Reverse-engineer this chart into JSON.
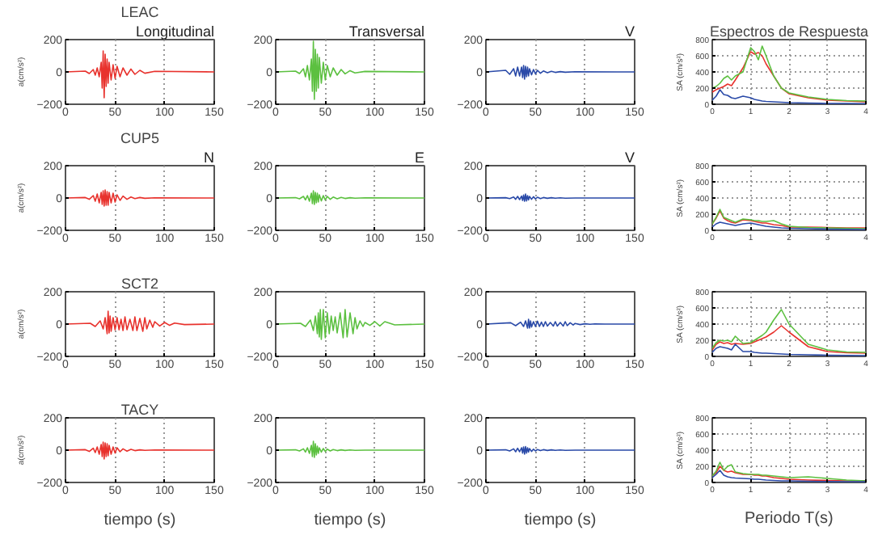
{
  "chart_data": [
    {
      "type": "line",
      "title": "LEAC",
      "annotations": [
        "Longitudinal"
      ],
      "ylabel": "a(cm/s²)",
      "xlim": [
        0,
        150
      ],
      "xticks": [
        0,
        50,
        100,
        150
      ],
      "ylim": [
        -200,
        200
      ],
      "yticks": [
        -200,
        0,
        200
      ],
      "grid": "x",
      "x": [
        0,
        20,
        24,
        28,
        30,
        32,
        34,
        36,
        37,
        38,
        39,
        40,
        41,
        42,
        43,
        44,
        46,
        48,
        50,
        52,
        55,
        58,
        62,
        66,
        70,
        75,
        80,
        90,
        150
      ],
      "series": [
        {
          "color": "#e8322d",
          "values": [
            0,
            5,
            -10,
            15,
            -20,
            25,
            -30,
            60,
            -100,
            130,
            -160,
            110,
            -90,
            80,
            -70,
            60,
            -50,
            45,
            -40,
            35,
            -30,
            25,
            -20,
            18,
            -15,
            10,
            -8,
            4,
            0
          ]
        }
      ]
    },
    {
      "type": "line",
      "annotations": [
        "Transversal"
      ],
      "xlim": [
        0,
        150
      ],
      "xticks": [
        0,
        50,
        100,
        150
      ],
      "ylim": [
        -200,
        200
      ],
      "yticks": [
        -200,
        0,
        200
      ],
      "grid": "x",
      "x": [
        0,
        20,
        24,
        28,
        30,
        32,
        34,
        36,
        37,
        38,
        39,
        40,
        41,
        42,
        43,
        44,
        46,
        48,
        50,
        52,
        55,
        58,
        62,
        66,
        70,
        75,
        80,
        90,
        150
      ],
      "series": [
        {
          "color": "#5cc040",
          "values": [
            0,
            5,
            -10,
            20,
            -30,
            40,
            -50,
            80,
            -120,
            190,
            -170,
            140,
            -120,
            110,
            -100,
            90,
            -70,
            60,
            -50,
            40,
            -30,
            25,
            -20,
            15,
            -12,
            8,
            -6,
            3,
            0
          ]
        }
      ]
    },
    {
      "type": "line",
      "annotations": [
        "V"
      ],
      "xlim": [
        0,
        150
      ],
      "xticks": [
        0,
        50,
        100,
        150
      ],
      "ylim": [
        -200,
        200
      ],
      "yticks": [
        -200,
        0,
        200
      ],
      "grid": "x",
      "x": [
        0,
        20,
        24,
        28,
        30,
        32,
        34,
        36,
        37,
        38,
        39,
        40,
        41,
        42,
        43,
        44,
        46,
        48,
        50,
        52,
        55,
        58,
        62,
        66,
        70,
        75,
        80,
        90,
        150
      ],
      "series": [
        {
          "color": "#2a4aa8",
          "values": [
            0,
            10,
            -15,
            20,
            -25,
            30,
            -25,
            30,
            -35,
            40,
            -45,
            35,
            -30,
            30,
            -25,
            20,
            -18,
            15,
            -12,
            10,
            -8,
            6,
            -5,
            4,
            -3,
            2,
            -2,
            1,
            0
          ]
        }
      ]
    },
    {
      "type": "line",
      "title": "Espectros de Respuesta",
      "ylabel": "SA (cm/s²)",
      "xlim": [
        0,
        4
      ],
      "xticks": [
        0,
        1,
        2,
        3,
        4
      ],
      "ylim": [
        0,
        800
      ],
      "yticks": [
        0,
        200,
        400,
        600,
        800
      ],
      "grid": true,
      "series": [
        {
          "color": "#e8322d",
          "x": [
            0,
            0.1,
            0.2,
            0.3,
            0.4,
            0.5,
            0.6,
            0.8,
            1.0,
            1.1,
            1.2,
            1.3,
            1.4,
            1.6,
            1.8,
            2.0,
            2.5,
            3.0,
            3.5,
            4.0
          ],
          "values": [
            150,
            180,
            200,
            220,
            250,
            230,
            300,
            450,
            650,
            620,
            640,
            600,
            500,
            350,
            200,
            130,
            80,
            50,
            40,
            30
          ]
        },
        {
          "color": "#5cc040",
          "x": [
            0,
            0.1,
            0.2,
            0.3,
            0.4,
            0.5,
            0.6,
            0.8,
            1.0,
            1.1,
            1.2,
            1.3,
            1.4,
            1.6,
            1.8,
            2.0,
            2.5,
            3.0,
            3.5,
            4.0
          ],
          "values": [
            200,
            220,
            260,
            320,
            350,
            300,
            350,
            400,
            700,
            650,
            550,
            720,
            600,
            350,
            200,
            140,
            90,
            60,
            45,
            40
          ]
        },
        {
          "color": "#2a4aa8",
          "x": [
            0,
            0.1,
            0.2,
            0.3,
            0.4,
            0.5,
            0.6,
            0.8,
            1.0,
            1.1,
            1.2,
            1.3,
            1.4,
            1.6,
            1.8,
            2.0,
            2.5,
            3.0,
            3.5,
            4.0
          ],
          "values": [
            50,
            100,
            180,
            120,
            110,
            80,
            70,
            100,
            80,
            60,
            50,
            40,
            35,
            30,
            25,
            20,
            15,
            10,
            10,
            8
          ]
        }
      ]
    },
    {
      "type": "line",
      "title": "CUP5",
      "annotations": [
        "N"
      ],
      "ylabel": "a(cm/s²)",
      "xlim": [
        0,
        150
      ],
      "xticks": [
        0,
        50,
        100,
        150
      ],
      "ylim": [
        -200,
        200
      ],
      "yticks": [
        -200,
        0,
        200
      ],
      "grid": "x",
      "x": [
        0,
        20,
        24,
        28,
        30,
        32,
        34,
        36,
        37,
        38,
        39,
        40,
        41,
        42,
        43,
        44,
        46,
        48,
        50,
        52,
        55,
        58,
        62,
        66,
        70,
        75,
        80,
        90,
        150
      ],
      "series": [
        {
          "color": "#e8322d",
          "values": [
            0,
            3,
            -8,
            15,
            -20,
            25,
            -30,
            35,
            -40,
            45,
            -50,
            50,
            -45,
            40,
            -45,
            35,
            -30,
            30,
            -25,
            20,
            -15,
            12,
            -8,
            6,
            -4,
            3,
            -2,
            1,
            0
          ]
        }
      ]
    },
    {
      "type": "line",
      "annotations": [
        "E"
      ],
      "xlim": [
        0,
        150
      ],
      "xticks": [
        0,
        50,
        100,
        150
      ],
      "ylim": [
        -200,
        200
      ],
      "yticks": [
        -200,
        0,
        200
      ],
      "grid": "x",
      "x": [
        0,
        20,
        24,
        28,
        30,
        32,
        34,
        36,
        37,
        38,
        39,
        40,
        41,
        42,
        43,
        44,
        46,
        48,
        50,
        52,
        55,
        58,
        62,
        66,
        70,
        75,
        80,
        90,
        150
      ],
      "series": [
        {
          "color": "#5cc040",
          "values": [
            0,
            2,
            -5,
            10,
            -12,
            15,
            -20,
            30,
            -35,
            45,
            -40,
            35,
            -30,
            30,
            -25,
            20,
            -18,
            15,
            -12,
            10,
            -8,
            6,
            -5,
            4,
            -3,
            2,
            -1,
            1,
            0
          ]
        }
      ]
    },
    {
      "type": "line",
      "annotations": [
        "V"
      ],
      "xlim": [
        0,
        150
      ],
      "xticks": [
        0,
        50,
        100,
        150
      ],
      "ylim": [
        -200,
        200
      ],
      "yticks": [
        -200,
        0,
        200
      ],
      "grid": "x",
      "x": [
        0,
        20,
        24,
        28,
        30,
        32,
        34,
        36,
        37,
        38,
        39,
        40,
        41,
        42,
        43,
        44,
        46,
        48,
        50,
        52,
        55,
        58,
        62,
        66,
        70,
        75,
        80,
        90,
        150
      ],
      "series": [
        {
          "color": "#2a4aa8",
          "values": [
            0,
            2,
            -4,
            6,
            -8,
            10,
            -10,
            12,
            -15,
            18,
            -20,
            25,
            -18,
            15,
            -12,
            10,
            -8,
            8,
            -6,
            5,
            -4,
            3,
            -2,
            2,
            -1,
            1,
            -1,
            0,
            0
          ]
        }
      ]
    },
    {
      "type": "line",
      "ylabel": "SA (cm/s²)",
      "xlim": [
        0,
        4
      ],
      "xticks": [
        0,
        1,
        2,
        3,
        4
      ],
      "ylim": [
        0,
        800
      ],
      "yticks": [
        0,
        200,
        400,
        600,
        800
      ],
      "grid": true,
      "series": [
        {
          "color": "#e8322d",
          "x": [
            0,
            0.1,
            0.2,
            0.3,
            0.4,
            0.5,
            0.6,
            0.8,
            1.0,
            1.1,
            1.2,
            1.3,
            1.4,
            1.6,
            1.8,
            2.0,
            2.5,
            3.0,
            3.5,
            4.0
          ],
          "values": [
            80,
            150,
            240,
            150,
            120,
            100,
            90,
            130,
            120,
            110,
            100,
            90,
            90,
            70,
            60,
            40,
            40,
            35,
            30,
            30
          ]
        },
        {
          "color": "#5cc040",
          "x": [
            0,
            0.1,
            0.2,
            0.3,
            0.4,
            0.5,
            0.6,
            0.8,
            1.0,
            1.1,
            1.2,
            1.3,
            1.4,
            1.6,
            1.8,
            2.0,
            2.5,
            3.0,
            3.5,
            4.0
          ],
          "values": [
            80,
            160,
            260,
            160,
            140,
            120,
            100,
            140,
            130,
            120,
            120,
            110,
            110,
            120,
            80,
            50,
            35,
            30,
            25,
            20
          ]
        },
        {
          "color": "#2a4aa8",
          "x": [
            0,
            0.1,
            0.2,
            0.3,
            0.4,
            0.5,
            0.6,
            0.8,
            1.0,
            1.1,
            1.2,
            1.3,
            1.4,
            1.6,
            1.8,
            2.0,
            2.5,
            3.0,
            3.5,
            4.0
          ],
          "values": [
            40,
            80,
            100,
            90,
            80,
            70,
            60,
            80,
            90,
            80,
            70,
            60,
            50,
            40,
            30,
            25,
            20,
            15,
            12,
            10
          ]
        }
      ]
    },
    {
      "type": "line",
      "title": "SCT2",
      "ylabel": "a(cm/s²)",
      "xlim": [
        0,
        150
      ],
      "xticks": [
        0,
        50,
        100,
        150
      ],
      "ylim": [
        -200,
        200
      ],
      "yticks": [
        -200,
        0,
        200
      ],
      "grid": "x",
      "x": [
        0,
        25,
        30,
        35,
        38,
        40,
        42,
        43,
        44,
        45,
        46,
        48,
        50,
        52,
        54,
        56,
        58,
        60,
        62,
        65,
        68,
        70,
        72,
        75,
        78,
        80,
        82,
        85,
        88,
        90,
        95,
        100,
        105,
        110,
        120,
        150
      ],
      "series": [
        {
          "color": "#e8322d",
          "values": [
            0,
            5,
            -15,
            20,
            -30,
            40,
            -60,
            80,
            -55,
            50,
            -45,
            40,
            -35,
            40,
            -35,
            30,
            -40,
            45,
            -35,
            30,
            -40,
            45,
            -40,
            35,
            -45,
            40,
            -30,
            25,
            -20,
            15,
            -12,
            10,
            -8,
            6,
            -3,
            0
          ]
        }
      ]
    },
    {
      "type": "line",
      "xlim": [
        0,
        150
      ],
      "xticks": [
        0,
        50,
        100,
        150
      ],
      "ylim": [
        -200,
        200
      ],
      "yticks": [
        -200,
        0,
        200
      ],
      "grid": "x",
      "x": [
        0,
        25,
        30,
        35,
        38,
        40,
        42,
        43,
        44,
        45,
        46,
        48,
        50,
        52,
        54,
        56,
        58,
        60,
        62,
        65,
        68,
        70,
        72,
        75,
        78,
        80,
        82,
        85,
        88,
        90,
        95,
        100,
        105,
        110,
        120,
        150
      ],
      "series": [
        {
          "color": "#5cc040",
          "values": [
            0,
            5,
            -15,
            25,
            -40,
            50,
            -60,
            70,
            -80,
            90,
            -95,
            90,
            -85,
            70,
            -60,
            50,
            -40,
            45,
            -55,
            70,
            -85,
            90,
            -80,
            70,
            -60,
            40,
            -30,
            20,
            -15,
            10,
            -8,
            15,
            -12,
            15,
            -5,
            0
          ]
        }
      ]
    },
    {
      "type": "line",
      "xlim": [
        0,
        150
      ],
      "xticks": [
        0,
        50,
        100,
        150
      ],
      "ylim": [
        -200,
        200
      ],
      "yticks": [
        -200,
        0,
        200
      ],
      "grid": "x",
      "x": [
        0,
        25,
        30,
        35,
        38,
        40,
        42,
        43,
        44,
        45,
        46,
        48,
        50,
        52,
        54,
        56,
        58,
        60,
        62,
        65,
        68,
        70,
        72,
        75,
        78,
        80,
        82,
        85,
        88,
        90,
        95,
        100,
        105,
        110,
        120,
        150
      ],
      "series": [
        {
          "color": "#2a4aa8",
          "values": [
            0,
            8,
            -10,
            12,
            -15,
            20,
            -25,
            30,
            -25,
            20,
            -18,
            15,
            -15,
            18,
            -15,
            12,
            -15,
            15,
            -12,
            10,
            -12,
            15,
            -12,
            10,
            -12,
            15,
            -10,
            8,
            -6,
            4,
            -3,
            2,
            -1,
            1,
            0,
            0
          ]
        }
      ]
    },
    {
      "type": "line",
      "ylabel": "SA (cm/s²)",
      "xlim": [
        0,
        4
      ],
      "xticks": [
        0,
        1,
        2,
        3,
        4
      ],
      "ylim": [
        0,
        800
      ],
      "yticks": [
        0,
        200,
        400,
        600,
        800
      ],
      "grid": true,
      "series": [
        {
          "color": "#e8322d",
          "x": [
            0,
            0.1,
            0.2,
            0.3,
            0.4,
            0.5,
            0.6,
            0.8,
            1.0,
            1.1,
            1.2,
            1.3,
            1.4,
            1.6,
            1.8,
            2.0,
            2.5,
            3.0,
            3.5,
            4.0
          ],
          "values": [
            80,
            150,
            180,
            160,
            170,
            150,
            160,
            150,
            160,
            180,
            200,
            220,
            240,
            300,
            380,
            300,
            120,
            60,
            45,
            40
          ]
        },
        {
          "color": "#5cc040",
          "x": [
            0,
            0.1,
            0.2,
            0.3,
            0.4,
            0.5,
            0.6,
            0.8,
            1.0,
            1.1,
            1.2,
            1.3,
            1.4,
            1.6,
            1.8,
            2.0,
            2.5,
            3.0,
            3.5,
            4.0
          ],
          "values": [
            100,
            170,
            200,
            190,
            200,
            180,
            250,
            160,
            170,
            200,
            230,
            260,
            300,
            450,
            580,
            400,
            150,
            80,
            55,
            50
          ]
        },
        {
          "color": "#2a4aa8",
          "x": [
            0,
            0.1,
            0.2,
            0.3,
            0.4,
            0.5,
            0.6,
            0.8,
            1.0,
            1.1,
            1.2,
            1.3,
            1.4,
            1.6,
            1.8,
            2.0,
            2.5,
            3.0,
            3.5,
            4.0
          ],
          "values": [
            50,
            100,
            120,
            110,
            100,
            80,
            150,
            60,
            60,
            50,
            45,
            40,
            40,
            35,
            30,
            25,
            20,
            15,
            12,
            10
          ]
        }
      ]
    },
    {
      "type": "line",
      "title": "TACY",
      "ylabel": "a(cm/s²)",
      "xlabel": "tiempo (s)",
      "xlim": [
        0,
        150
      ],
      "xticks": [
        0,
        50,
        100,
        150
      ],
      "ylim": [
        -200,
        200
      ],
      "yticks": [
        -200,
        0,
        200
      ],
      "grid": "x",
      "x": [
        0,
        20,
        24,
        28,
        30,
        32,
        34,
        36,
        37,
        38,
        39,
        40,
        41,
        42,
        43,
        44,
        46,
        48,
        50,
        52,
        55,
        58,
        62,
        66,
        70,
        75,
        80,
        90,
        150
      ],
      "series": [
        {
          "color": "#e8322d",
          "values": [
            0,
            3,
            -8,
            12,
            -15,
            20,
            -25,
            35,
            -40,
            50,
            -55,
            45,
            -40,
            40,
            -35,
            30,
            -25,
            20,
            -18,
            15,
            -10,
            8,
            -6,
            5,
            -3,
            2,
            -1,
            1,
            0
          ]
        }
      ]
    },
    {
      "type": "line",
      "xlabel": "tiempo (s)",
      "xlim": [
        0,
        150
      ],
      "xticks": [
        0,
        50,
        100,
        150
      ],
      "ylim": [
        -200,
        200
      ],
      "yticks": [
        -200,
        0,
        200
      ],
      "grid": "x",
      "x": [
        0,
        20,
        24,
        28,
        30,
        32,
        34,
        36,
        37,
        38,
        39,
        40,
        41,
        42,
        43,
        44,
        46,
        48,
        50,
        52,
        55,
        58,
        62,
        66,
        70,
        75,
        80,
        90,
        150
      ],
      "series": [
        {
          "color": "#5cc040",
          "values": [
            0,
            2,
            -5,
            8,
            -12,
            15,
            -20,
            30,
            -40,
            55,
            -45,
            40,
            -30,
            25,
            -20,
            15,
            -12,
            10,
            -8,
            6,
            -5,
            4,
            -3,
            2,
            -2,
            1,
            -1,
            0,
            0
          ]
        }
      ]
    },
    {
      "type": "line",
      "xlabel": "tiempo (s)",
      "xlim": [
        0,
        150
      ],
      "xticks": [
        0,
        50,
        100,
        150
      ],
      "ylim": [
        -200,
        200
      ],
      "yticks": [
        -200,
        0,
        200
      ],
      "grid": "x",
      "x": [
        0,
        20,
        24,
        28,
        30,
        32,
        34,
        36,
        37,
        38,
        39,
        40,
        41,
        42,
        43,
        44,
        46,
        48,
        50,
        52,
        55,
        58,
        62,
        66,
        70,
        75,
        80,
        90,
        150
      ],
      "series": [
        {
          "color": "#2a4aa8",
          "values": [
            0,
            2,
            -5,
            8,
            -10,
            12,
            -10,
            15,
            -18,
            20,
            -25,
            22,
            -18,
            15,
            -12,
            10,
            -8,
            6,
            -5,
            4,
            -3,
            3,
            -2,
            2,
            -1,
            1,
            -1,
            0,
            0
          ]
        }
      ]
    },
    {
      "type": "line",
      "ylabel": "SA (cm/s²)",
      "xlabel": "Periodo T(s)",
      "xlim": [
        0,
        4
      ],
      "xticks": [
        0,
        1,
        2,
        3,
        4
      ],
      "ylim": [
        0,
        800
      ],
      "yticks": [
        0,
        200,
        400,
        600,
        800
      ],
      "grid": true,
      "series": [
        {
          "color": "#e8322d",
          "x": [
            0,
            0.1,
            0.2,
            0.3,
            0.4,
            0.5,
            0.6,
            0.8,
            1.0,
            1.1,
            1.2,
            1.3,
            1.4,
            1.6,
            1.8,
            2.0,
            2.5,
            3.0,
            3.5,
            4.0
          ],
          "values": [
            80,
            120,
            200,
            150,
            130,
            140,
            120,
            100,
            100,
            90,
            90,
            80,
            80,
            60,
            50,
            40,
            30,
            25,
            20,
            20
          ]
        },
        {
          "color": "#5cc040",
          "x": [
            0,
            0.1,
            0.2,
            0.3,
            0.4,
            0.5,
            0.6,
            0.8,
            1.0,
            1.1,
            1.2,
            1.3,
            1.4,
            1.6,
            1.8,
            2.0,
            2.5,
            3.0,
            3.5,
            4.0
          ],
          "values": [
            80,
            140,
            250,
            150,
            200,
            220,
            130,
            110,
            100,
            100,
            100,
            90,
            90,
            80,
            70,
            60,
            70,
            50,
            30,
            20
          ]
        },
        {
          "color": "#2a4aa8",
          "x": [
            0,
            0.1,
            0.2,
            0.3,
            0.4,
            0.5,
            0.6,
            0.8,
            1.0,
            1.1,
            1.2,
            1.3,
            1.4,
            1.6,
            1.8,
            2.0,
            2.5,
            3.0,
            3.5,
            4.0
          ],
          "values": [
            60,
            100,
            150,
            90,
            70,
            60,
            55,
            50,
            45,
            40,
            40,
            35,
            30,
            25,
            20,
            20,
            15,
            12,
            10,
            10
          ]
        }
      ]
    }
  ]
}
